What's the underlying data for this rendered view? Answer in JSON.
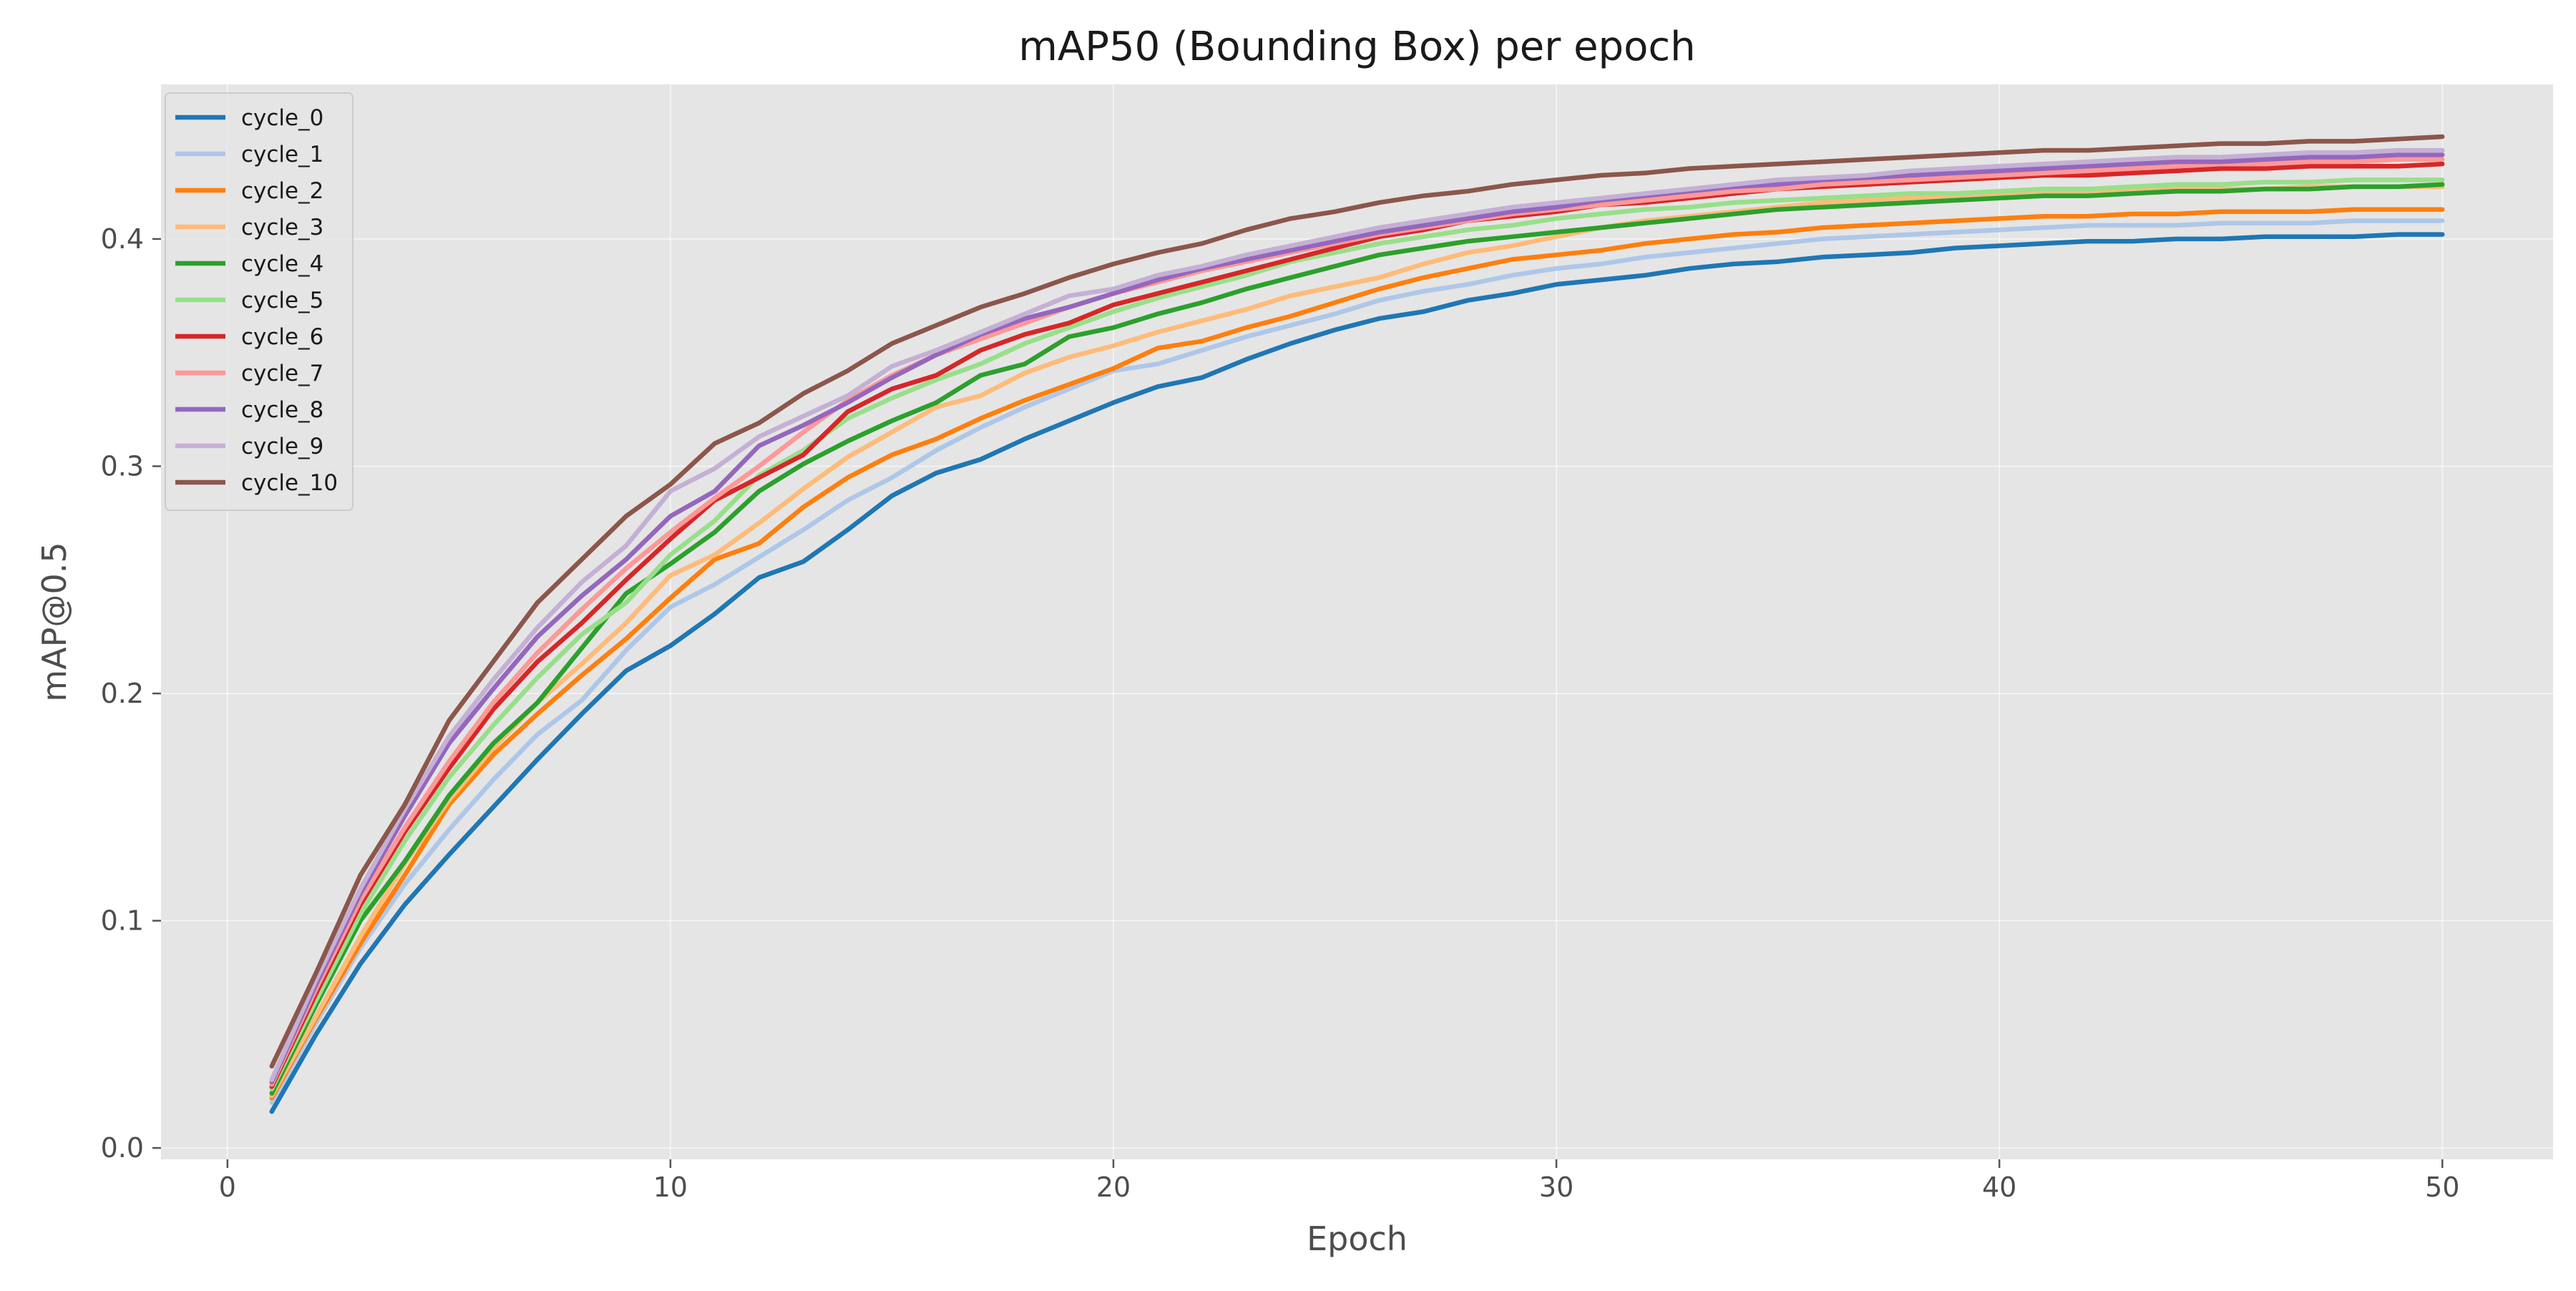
{
  "chart_data": {
    "type": "line",
    "title": "mAP50 (Bounding Box) per epoch",
    "xlabel": "Epoch",
    "ylabel": "mAP@0.5",
    "xlim": [
      -1.5,
      52.5
    ],
    "ylim": [
      -0.005,
      0.468
    ],
    "xticks": [
      0,
      10,
      20,
      30,
      40,
      50
    ],
    "yticks": [
      0.0,
      0.1,
      0.2,
      0.3,
      0.4
    ],
    "ytick_labels": [
      "0.0",
      "0.1",
      "0.2",
      "0.3",
      "0.4"
    ],
    "grid": true,
    "legend_position": "top-left",
    "background_color": "#e5e5e5",
    "x": [
      1,
      2,
      3,
      4,
      5,
      6,
      7,
      8,
      9,
      10,
      11,
      12,
      13,
      14,
      15,
      16,
      17,
      18,
      19,
      20,
      21,
      22,
      23,
      24,
      25,
      26,
      27,
      28,
      29,
      30,
      31,
      32,
      33,
      34,
      35,
      36,
      37,
      38,
      39,
      40,
      41,
      42,
      43,
      44,
      45,
      46,
      47,
      48,
      49,
      50
    ],
    "series": [
      {
        "name": "cycle_0",
        "color": "#1f77b4",
        "values": [
          0.016,
          0.05,
          0.081,
          0.107,
          0.129,
          0.15,
          0.171,
          0.191,
          0.21,
          0.221,
          0.235,
          0.251,
          0.258,
          0.272,
          0.287,
          0.297,
          0.303,
          0.312,
          0.32,
          0.328,
          0.335,
          0.339,
          0.347,
          0.354,
          0.36,
          0.365,
          0.368,
          0.373,
          0.376,
          0.38,
          0.382,
          0.384,
          0.387,
          0.389,
          0.39,
          0.392,
          0.393,
          0.394,
          0.396,
          0.397,
          0.398,
          0.399,
          0.399,
          0.4,
          0.4,
          0.401,
          0.401,
          0.401,
          0.402,
          0.402
        ]
      },
      {
        "name": "cycle_1",
        "color": "#aec7e8",
        "values": [
          0.02,
          0.055,
          0.088,
          0.116,
          0.14,
          0.162,
          0.182,
          0.197,
          0.219,
          0.238,
          0.248,
          0.26,
          0.272,
          0.285,
          0.295,
          0.307,
          0.317,
          0.326,
          0.334,
          0.342,
          0.345,
          0.351,
          0.357,
          0.362,
          0.367,
          0.373,
          0.377,
          0.38,
          0.384,
          0.387,
          0.389,
          0.392,
          0.394,
          0.396,
          0.398,
          0.4,
          0.401,
          0.402,
          0.403,
          0.404,
          0.405,
          0.406,
          0.406,
          0.406,
          0.407,
          0.407,
          0.407,
          0.408,
          0.408,
          0.408
        ]
      },
      {
        "name": "cycle_2",
        "color": "#ff7f0e",
        "values": [
          0.022,
          0.057,
          0.09,
          0.12,
          0.151,
          0.173,
          0.191,
          0.208,
          0.224,
          0.242,
          0.259,
          0.266,
          0.282,
          0.295,
          0.305,
          0.312,
          0.321,
          0.329,
          0.336,
          0.343,
          0.352,
          0.355,
          0.361,
          0.366,
          0.372,
          0.378,
          0.383,
          0.387,
          0.391,
          0.393,
          0.395,
          0.398,
          0.4,
          0.402,
          0.403,
          0.405,
          0.406,
          0.407,
          0.408,
          0.409,
          0.41,
          0.41,
          0.411,
          0.411,
          0.412,
          0.412,
          0.412,
          0.413,
          0.413,
          0.413
        ]
      },
      {
        "name": "cycle_3",
        "color": "#ffbb78",
        "values": [
          0.023,
          0.058,
          0.093,
          0.125,
          0.153,
          0.176,
          0.196,
          0.213,
          0.231,
          0.252,
          0.261,
          0.275,
          0.29,
          0.304,
          0.315,
          0.326,
          0.331,
          0.341,
          0.348,
          0.353,
          0.359,
          0.364,
          0.369,
          0.375,
          0.379,
          0.383,
          0.389,
          0.394,
          0.397,
          0.401,
          0.405,
          0.408,
          0.41,
          0.412,
          0.414,
          0.416,
          0.417,
          0.418,
          0.419,
          0.42,
          0.42,
          0.421,
          0.421,
          0.422,
          0.422,
          0.422,
          0.423,
          0.423,
          0.423,
          0.423
        ]
      },
      {
        "name": "cycle_4",
        "color": "#2ca02c",
        "values": [
          0.024,
          0.063,
          0.1,
          0.126,
          0.155,
          0.178,
          0.196,
          0.22,
          0.244,
          0.257,
          0.271,
          0.289,
          0.301,
          0.311,
          0.32,
          0.328,
          0.34,
          0.345,
          0.357,
          0.361,
          0.367,
          0.372,
          0.378,
          0.383,
          0.388,
          0.393,
          0.396,
          0.399,
          0.401,
          0.403,
          0.405,
          0.407,
          0.409,
          0.411,
          0.413,
          0.414,
          0.415,
          0.416,
          0.417,
          0.418,
          0.419,
          0.419,
          0.42,
          0.421,
          0.421,
          0.422,
          0.422,
          0.423,
          0.423,
          0.424
        ]
      },
      {
        "name": "cycle_5",
        "color": "#98df8a",
        "values": [
          0.026,
          0.065,
          0.103,
          0.135,
          0.163,
          0.186,
          0.207,
          0.226,
          0.24,
          0.261,
          0.276,
          0.296,
          0.307,
          0.321,
          0.33,
          0.338,
          0.345,
          0.354,
          0.361,
          0.368,
          0.374,
          0.379,
          0.384,
          0.39,
          0.394,
          0.398,
          0.401,
          0.404,
          0.406,
          0.409,
          0.411,
          0.413,
          0.414,
          0.416,
          0.417,
          0.418,
          0.419,
          0.42,
          0.42,
          0.421,
          0.422,
          0.422,
          0.423,
          0.424,
          0.424,
          0.425,
          0.425,
          0.426,
          0.426,
          0.426
        ]
      },
      {
        "name": "cycle_6",
        "color": "#d62728",
        "values": [
          0.027,
          0.068,
          0.107,
          0.139,
          0.167,
          0.193,
          0.214,
          0.231,
          0.25,
          0.268,
          0.285,
          0.295,
          0.305,
          0.324,
          0.334,
          0.34,
          0.351,
          0.358,
          0.363,
          0.371,
          0.376,
          0.381,
          0.386,
          0.391,
          0.396,
          0.401,
          0.404,
          0.408,
          0.41,
          0.412,
          0.415,
          0.416,
          0.418,
          0.42,
          0.422,
          0.423,
          0.424,
          0.425,
          0.426,
          0.427,
          0.428,
          0.428,
          0.429,
          0.43,
          0.431,
          0.431,
          0.432,
          0.432,
          0.432,
          0.433
        ]
      },
      {
        "name": "cycle_7",
        "color": "#ff9896",
        "values": [
          0.028,
          0.07,
          0.109,
          0.141,
          0.17,
          0.196,
          0.218,
          0.237,
          0.255,
          0.271,
          0.286,
          0.3,
          0.315,
          0.329,
          0.34,
          0.349,
          0.356,
          0.363,
          0.37,
          0.376,
          0.381,
          0.386,
          0.39,
          0.394,
          0.398,
          0.402,
          0.405,
          0.408,
          0.411,
          0.413,
          0.415,
          0.417,
          0.419,
          0.421,
          0.422,
          0.424,
          0.425,
          0.426,
          0.427,
          0.428,
          0.429,
          0.43,
          0.431,
          0.432,
          0.433,
          0.433,
          0.434,
          0.434,
          0.435,
          0.435
        ]
      },
      {
        "name": "cycle_8",
        "color": "#9467bd",
        "values": [
          0.029,
          0.072,
          0.112,
          0.146,
          0.178,
          0.202,
          0.225,
          0.243,
          0.259,
          0.278,
          0.289,
          0.309,
          0.318,
          0.328,
          0.339,
          0.349,
          0.358,
          0.365,
          0.37,
          0.376,
          0.382,
          0.387,
          0.391,
          0.395,
          0.399,
          0.403,
          0.406,
          0.409,
          0.412,
          0.414,
          0.417,
          0.419,
          0.421,
          0.423,
          0.424,
          0.426,
          0.427,
          0.428,
          0.429,
          0.43,
          0.431,
          0.432,
          0.433,
          0.434,
          0.434,
          0.435,
          0.436,
          0.436,
          0.437,
          0.437
        ]
      },
      {
        "name": "cycle_9",
        "color": "#c5b0d5",
        "values": [
          0.03,
          0.074,
          0.114,
          0.149,
          0.181,
          0.206,
          0.229,
          0.249,
          0.265,
          0.289,
          0.299,
          0.313,
          0.322,
          0.331,
          0.344,
          0.351,
          0.359,
          0.367,
          0.375,
          0.378,
          0.384,
          0.388,
          0.393,
          0.397,
          0.401,
          0.405,
          0.408,
          0.411,
          0.414,
          0.416,
          0.418,
          0.42,
          0.422,
          0.424,
          0.426,
          0.427,
          0.428,
          0.43,
          0.431,
          0.432,
          0.433,
          0.434,
          0.435,
          0.436,
          0.436,
          0.437,
          0.438,
          0.438,
          0.439,
          0.439
        ]
      },
      {
        "name": "cycle_10",
        "color": "#8c564b",
        "values": [
          0.036,
          0.077,
          0.12,
          0.151,
          0.188,
          0.214,
          0.24,
          0.259,
          0.278,
          0.292,
          0.31,
          0.319,
          0.332,
          0.342,
          0.354,
          0.362,
          0.37,
          0.376,
          0.383,
          0.389,
          0.394,
          0.398,
          0.404,
          0.409,
          0.412,
          0.416,
          0.419,
          0.421,
          0.424,
          0.426,
          0.428,
          0.429,
          0.431,
          0.432,
          0.433,
          0.434,
          0.435,
          0.436,
          0.437,
          0.438,
          0.439,
          0.439,
          0.44,
          0.441,
          0.442,
          0.442,
          0.443,
          0.443,
          0.444,
          0.445
        ]
      }
    ]
  }
}
